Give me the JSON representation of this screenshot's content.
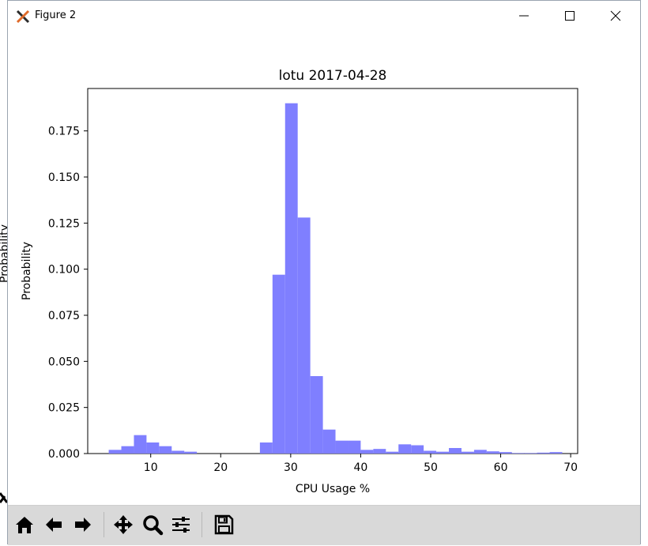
{
  "window": {
    "title": "Figure 2"
  },
  "side_fragment": {
    "label": "Probability"
  },
  "toolbar": {
    "tools": [
      {
        "name": "home",
        "icon": "home-icon"
      },
      {
        "name": "back",
        "icon": "arrow-left-icon"
      },
      {
        "name": "forward",
        "icon": "arrow-right-icon"
      },
      {
        "name": "pan",
        "icon": "move-icon"
      },
      {
        "name": "zoom",
        "icon": "magnifier-icon"
      },
      {
        "name": "configure",
        "icon": "sliders-icon"
      },
      {
        "name": "save",
        "icon": "floppy-disk-icon"
      }
    ]
  },
  "chart_data": {
    "type": "bar",
    "title": "lotu 2017-04-28",
    "xlabel": "CPU Usage %",
    "ylabel": "Probability",
    "xlim": [
      1,
      71
    ],
    "ylim": [
      0,
      0.198
    ],
    "xticks": [
      "10",
      "20",
      "30",
      "40",
      "50",
      "60",
      "70"
    ],
    "yticks": [
      "0.000",
      "0.025",
      "0.050",
      "0.075",
      "0.100",
      "0.125",
      "0.150",
      "0.175"
    ],
    "bar_color": "#7f7fff",
    "bin_width": 1.8,
    "bins_start": [
      4.0,
      5.8,
      7.6,
      9.4,
      11.2,
      13.0,
      14.8,
      16.6,
      18.4,
      20.2,
      22.0,
      23.8,
      25.6,
      27.4,
      29.2,
      31.0,
      32.8,
      34.6,
      36.4,
      38.2,
      40.0,
      41.8,
      43.6,
      45.4,
      47.2,
      49.0,
      50.8,
      52.6,
      54.4,
      56.2,
      58.0,
      59.8,
      61.6,
      63.4,
      65.2,
      67.0
    ],
    "values": [
      0.002,
      0.004,
      0.01,
      0.006,
      0.004,
      0.0015,
      0.001,
      0.0,
      0.0,
      0.0,
      0.0,
      0.0,
      0.006,
      0.097,
      0.19,
      0.128,
      0.042,
      0.013,
      0.007,
      0.007,
      0.002,
      0.0025,
      0.001,
      0.005,
      0.0045,
      0.0015,
      0.001,
      0.003,
      0.001,
      0.002,
      0.0012,
      0.0008,
      0.0003,
      0.0003,
      0.0005,
      0.0008
    ],
    "grid": false,
    "legend": "none"
  }
}
